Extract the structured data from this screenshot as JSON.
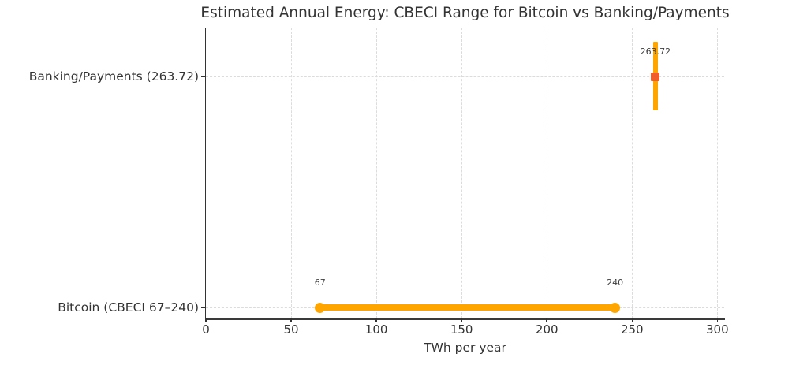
{
  "chart_data": {
    "type": "range",
    "title": "Estimated Annual Energy: CBECI Range for Bitcoin vs Banking/Payments",
    "xlabel": "TWh per year",
    "x_ticks": [
      0,
      50,
      100,
      150,
      200,
      250,
      300
    ],
    "xlim": [
      0,
      304
    ],
    "grid": true,
    "legend": "none",
    "colors": {
      "bar": "#ffa500",
      "marker": "#f05e2c",
      "grid": "#dcdcdc",
      "text": "#333333"
    },
    "rows": [
      {
        "key": "banking",
        "label": "Banking/Payments (263.72)",
        "kind": "point",
        "value": 263.72,
        "annotation": "263.72"
      },
      {
        "key": "bitcoin",
        "label": "Bitcoin (CBECI 67–240)",
        "kind": "range",
        "min": 67,
        "max": 240,
        "annotation_min": "67",
        "annotation_max": "240"
      }
    ]
  }
}
